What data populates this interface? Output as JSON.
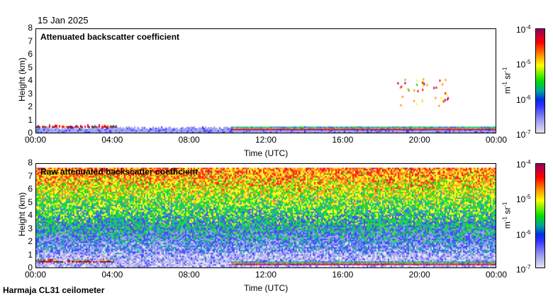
{
  "date": "15 Jan 2025",
  "footer": "Harmaja CL31 ceilometer",
  "chart_data": [
    {
      "type": "heatmap",
      "title": "Attenuated backscatter coefficient",
      "xlabel": "Time (UTC)",
      "ylabel": "Height (km)",
      "x_ticks": [
        "00:00",
        "04:00",
        "08:00",
        "12:00",
        "16:00",
        "20:00",
        "00:00"
      ],
      "y_ticks": [
        "0",
        "1",
        "2",
        "3",
        "4",
        "5",
        "6",
        "7",
        "8"
      ],
      "ylim": [
        0,
        8
      ],
      "xlim_hours": [
        0,
        24
      ],
      "colorbar": {
        "unit_base": "m",
        "unit_exp1": "-1",
        "unit_sr": "sr",
        "unit_exp2": "-1",
        "ticks": [
          {
            "base": "10",
            "exp": "-4"
          },
          {
            "base": "10",
            "exp": "-5"
          },
          {
            "base": "10",
            "exp": "-6"
          },
          {
            "base": "10",
            "exp": "-7"
          }
        ]
      },
      "features": [
        {
          "kind": "low cloud layer",
          "start_h": 0,
          "end_h": 4.2,
          "height_km": 0.5
        },
        {
          "kind": "boundary layer",
          "start_h": 0,
          "end_h": 24,
          "height_km": 0.4
        },
        {
          "kind": "cloud base layer",
          "start_h": 10.2,
          "end_h": 24,
          "height_km": 0.3
        },
        {
          "kind": "scattered high echoes",
          "start_h": 18.8,
          "end_h": 21.5,
          "height_km": 3.0
        }
      ]
    },
    {
      "type": "heatmap",
      "title": "Raw attenuated backscatter coefficient",
      "xlabel": "Time (UTC)",
      "ylabel": "Height (km)",
      "x_ticks": [
        "00:00",
        "04:00",
        "08:00",
        "12:00",
        "16:00",
        "20:00",
        "00:00"
      ],
      "y_ticks": [
        "0",
        "1",
        "2",
        "3",
        "4",
        "5",
        "6",
        "7",
        "8"
      ],
      "ylim": [
        0,
        8
      ],
      "xlim_hours": [
        0,
        24
      ],
      "colorbar": {
        "ticks": [
          {
            "base": "10",
            "exp": "-4"
          },
          {
            "base": "10",
            "exp": "-5"
          },
          {
            "base": "10",
            "exp": "-6"
          },
          {
            "base": "10",
            "exp": "-7"
          }
        ]
      },
      "features": [
        {
          "kind": "noise increasing with height",
          "start_h": 0,
          "end_h": 24,
          "height_km": 7.7
        },
        {
          "kind": "low cloud layer",
          "start_h": 0,
          "end_h": 4.2,
          "height_km": 0.5
        },
        {
          "kind": "cloud base layer",
          "start_h": 10.2,
          "end_h": 24,
          "height_km": 0.3
        }
      ]
    }
  ],
  "colors": {
    "scale": [
      "#e4e4ee",
      "#9a9af0",
      "#3030ff",
      "#00a0a0",
      "#00e000",
      "#ffff00",
      "#ff9000",
      "#ff0000",
      "#900060"
    ]
  }
}
